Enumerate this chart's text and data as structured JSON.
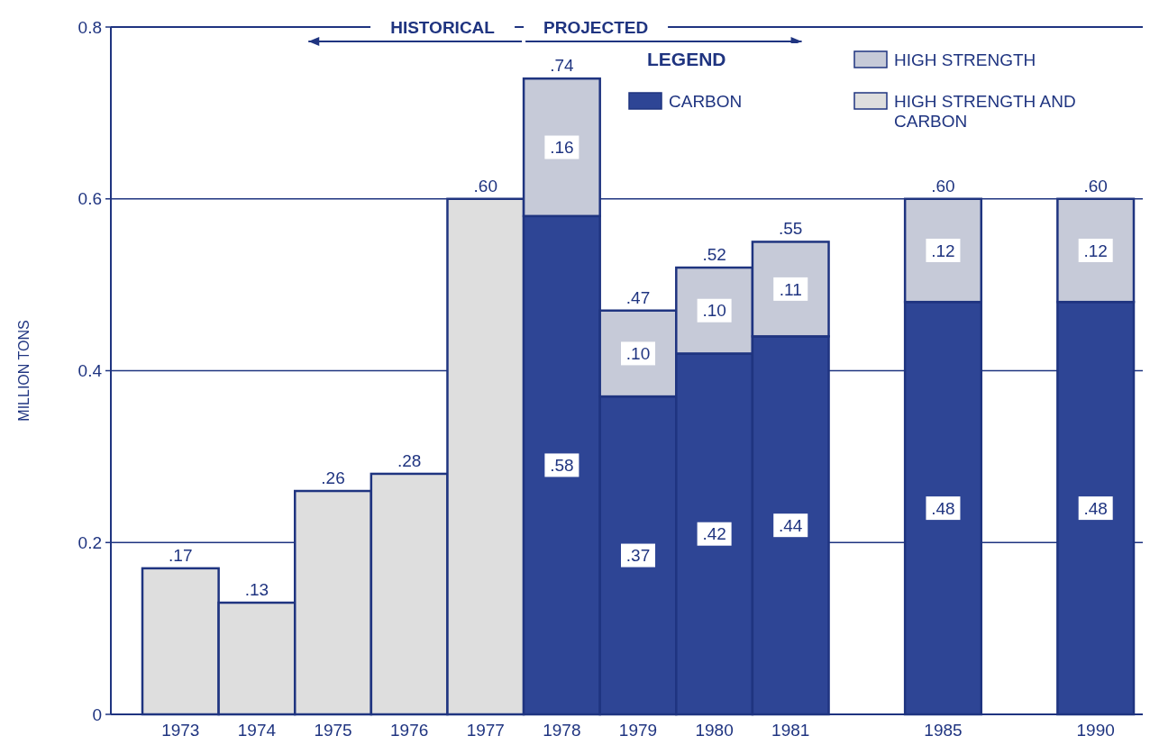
{
  "chart_data": {
    "type": "bar",
    "stacked": true,
    "categories": [
      "1973",
      "1974",
      "1975",
      "1976",
      "1977",
      "1978",
      "1979",
      "1980",
      "1981",
      null,
      "1985",
      null,
      "1990"
    ],
    "series": [
      {
        "name": "HIGH STRENGTH AND CARBON",
        "color": "#dedede",
        "values": [
          0.17,
          0.13,
          0.26,
          0.28,
          0.6,
          null,
          null,
          null,
          null,
          null,
          null,
          null,
          null
        ],
        "value_labels": [
          ".17",
          ".13",
          ".26",
          ".28",
          ".60",
          null,
          null,
          null,
          null,
          null,
          null,
          null,
          null
        ]
      },
      {
        "name": "CARBON",
        "color": "#2e4595",
        "values": [
          null,
          null,
          null,
          null,
          null,
          0.58,
          0.37,
          0.42,
          0.44,
          null,
          0.48,
          null,
          0.48
        ],
        "value_labels": [
          null,
          null,
          null,
          null,
          null,
          ".58",
          ".37",
          ".42",
          ".44",
          null,
          ".48",
          null,
          ".48"
        ]
      },
      {
        "name": "HIGH STRENGTH",
        "color": "#c6cad8",
        "values": [
          null,
          null,
          null,
          null,
          null,
          0.16,
          0.1,
          0.1,
          0.11,
          null,
          0.12,
          null,
          0.12
        ],
        "value_labels": [
          null,
          null,
          null,
          null,
          null,
          ".16",
          ".10",
          ".10",
          ".11",
          null,
          ".12",
          null,
          ".12"
        ]
      }
    ],
    "totals": [
      null,
      null,
      null,
      null,
      null,
      ".74",
      ".47",
      ".52",
      ".55",
      null,
      ".60",
      null,
      ".60"
    ],
    "ylabel": "MILLION TONS",
    "legend_title": "LEGEND",
    "legend": "top right",
    "grid": "y",
    "ylim": [
      0,
      0.8
    ],
    "yticks": [
      0,
      0.2,
      0.4,
      0.6,
      0.8
    ],
    "annotations": [
      "HISTORICAL",
      "PROJECTED"
    ]
  }
}
